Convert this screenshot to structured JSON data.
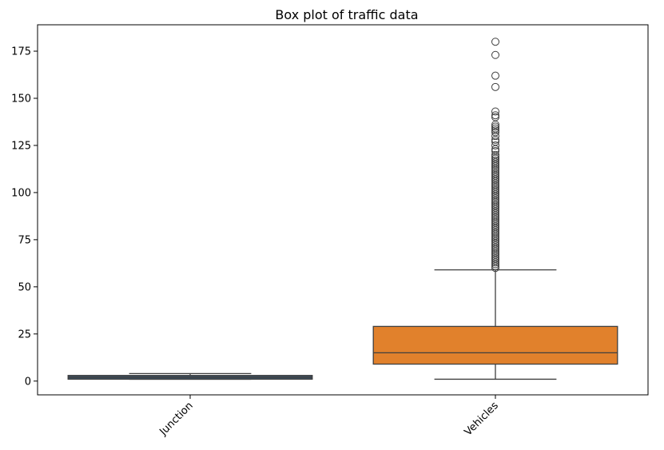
{
  "chart_data": {
    "type": "box",
    "title": "Box plot of traffic data",
    "xlabel": "",
    "ylabel": "",
    "ylim": [
      -7.3,
      189
    ],
    "yticks": [
      0,
      25,
      50,
      75,
      100,
      125,
      150,
      175
    ],
    "categories": [
      "Junction",
      "Vehicles"
    ],
    "x_tick_rotation": 45,
    "boxes": [
      {
        "category": "Junction",
        "color": "#3b5266",
        "whisker_low": 1,
        "q1": 1,
        "median": 2,
        "q3": 3,
        "whisker_high": 4,
        "outliers": []
      },
      {
        "category": "Vehicles",
        "color": "#e1812c",
        "whisker_low": 1,
        "q1": 9,
        "median": 15,
        "q3": 29,
        "whisker_high": 59,
        "outliers": [
          180,
          173,
          162,
          156,
          143,
          141,
          140,
          136,
          135,
          134,
          133,
          132,
          130,
          128,
          127,
          125,
          123,
          122,
          120,
          119,
          118,
          117,
          116,
          115,
          114,
          113,
          112,
          111,
          110,
          109,
          108,
          107,
          106,
          105,
          104,
          103,
          102,
          101,
          100,
          99,
          98,
          97,
          96,
          95,
          94,
          93,
          92,
          91,
          90,
          89,
          88,
          87,
          86,
          85,
          84,
          83,
          82,
          81,
          80,
          79,
          78,
          77,
          76,
          75,
          74,
          73,
          72,
          71,
          70,
          69,
          68,
          67,
          66,
          65,
          64,
          63,
          62,
          61,
          60
        ]
      }
    ],
    "grid": false,
    "legend": "none"
  }
}
